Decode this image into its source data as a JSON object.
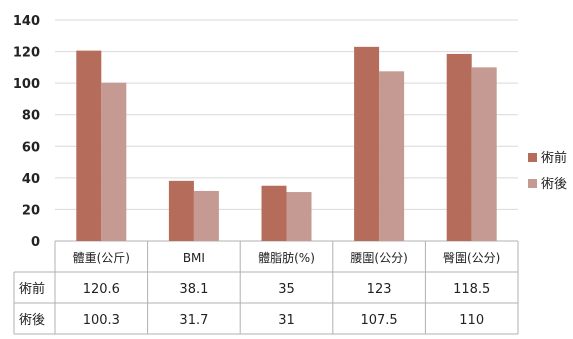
{
  "chart_data": {
    "type": "bar",
    "categories": [
      "體重(公斤)",
      "BMI",
      "體脂肪(%)",
      "腰圍(公分)",
      "臀圍(公分)"
    ],
    "series": [
      {
        "name": "術前",
        "values": [
          120.6,
          38.1,
          35,
          123,
          118.5
        ],
        "color": "#b56c5a",
        "labels": [
          "120.6",
          "38.1",
          "35",
          "123",
          "118.5"
        ]
      },
      {
        "name": "術後",
        "values": [
          100.3,
          31.7,
          31,
          107.5,
          110
        ],
        "color": "#c49a93",
        "labels": [
          "100.3",
          "31.7",
          "31",
          "107.5",
          "110"
        ]
      }
    ],
    "ylim": [
      0,
      140
    ],
    "yticks": [
      "0",
      "20",
      "40",
      "60",
      "80",
      "100",
      "120",
      "140"
    ],
    "grid": true,
    "legend": "right",
    "data_table": true
  }
}
